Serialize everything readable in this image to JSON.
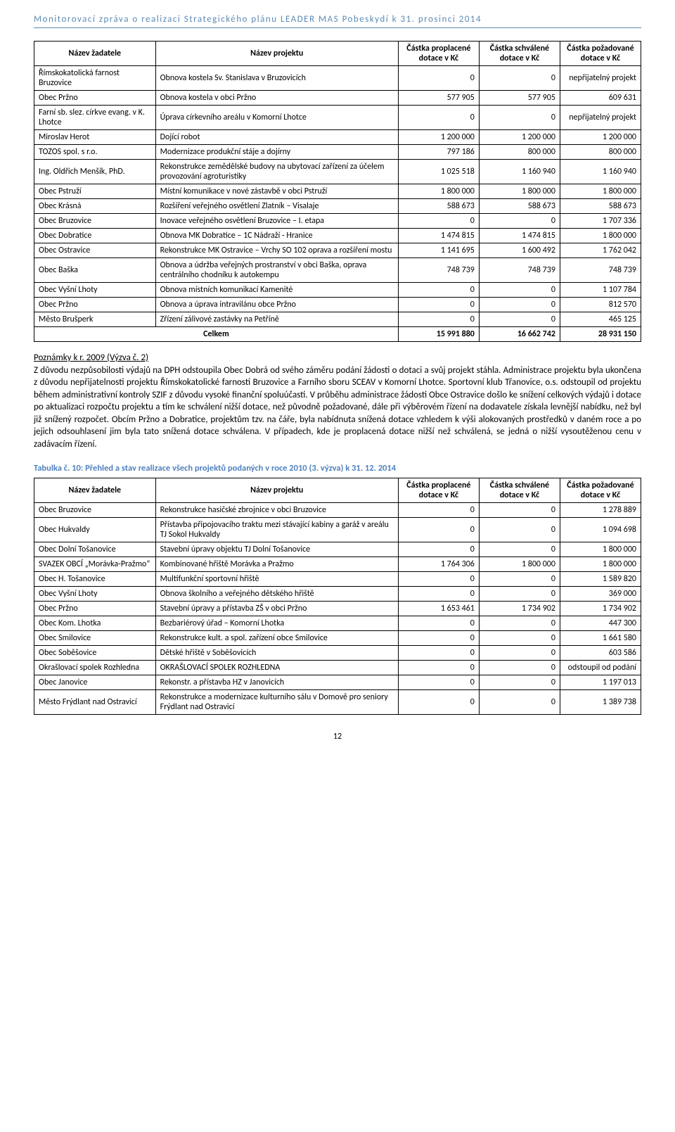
{
  "doc_header": "Monitorovací zpráva o realizaci Strategického plánu LEADER MAS Pobeskydí k 31. prosinci 2014",
  "page_number": "12",
  "colors": {
    "header_text": "#5b8ab5",
    "header_rule": "#5b8ab5",
    "caption": "#4f81bd",
    "body_text": "#000000",
    "table_border": "#000000",
    "background": "#ffffff"
  },
  "table1": {
    "columns": [
      "Název žadatele",
      "Název projektu",
      "Částka proplacené dotace v Kč",
      "Částka schválené dotace v Kč",
      "Částka požadované dotace v Kč"
    ],
    "rows": [
      [
        "Římskokatolická farnost Bruzovice",
        "Obnova kostela Sv. Stanislava v Bruzovicích",
        "0",
        "0",
        "nepřijatelný projekt"
      ],
      [
        "Obec Pržno",
        "Obnova kostela v obci Pržno",
        "577 905",
        "577 905",
        "609 631"
      ],
      [
        "Farní sb. slez. církve evang. v K. Lhotce",
        "Úprava církevního areálu v Komorní Lhotce",
        "0",
        "0",
        "nepřijatelný projekt"
      ],
      [
        "Miroslav Herot",
        "Dojící robot",
        "1 200 000",
        "1 200 000",
        "1 200 000"
      ],
      [
        "TOZOS spol. s r.o.",
        "Modernizace produkční stáje a dojírny",
        "797 186",
        "800 000",
        "800 000"
      ],
      [
        "Ing. Oldřich Menšík, PhD.",
        "Rekonstrukce zemědělské budovy na ubytovací zařízení za účelem provozování agroturistiky",
        "1 025 518",
        "1 160 940",
        "1 160 940"
      ],
      [
        "Obec Pstruží",
        "Místní komunikace v nové zástavbě v obci Pstruží",
        "1 800 000",
        "1 800 000",
        "1 800 000"
      ],
      [
        "Obec Krásná",
        "Rozšíření veřejného osvětlení Zlatník – Visalaje",
        "588 673",
        "588 673",
        "588 673"
      ],
      [
        "Obec Bruzovice",
        "Inovace veřejného osvětlení Bruzovice  – I. etapa",
        "0",
        "0",
        "1 707 336"
      ],
      [
        "Obec Dobratice",
        "Obnova MK Dobratice – 1C Nádraží - Hranice",
        "1 474 815",
        "1 474 815",
        "1 800 000"
      ],
      [
        "Obec Ostravice",
        "Rekonstrukce MK Ostravice – Vrchy SO 102 oprava a rozšíření mostu",
        "1 141 695",
        "1 600 492",
        "1 762 042"
      ],
      [
        "Obec Baška",
        "Obnova a údržba veřejných prostranství v obci Baška, oprava centrálního chodníku k autokempu",
        "748 739",
        "748 739",
        "748 739"
      ],
      [
        "Obec Vyšní Lhoty",
        "Obnova místních komunikací Kamenité",
        "0",
        "0",
        "1 107 784"
      ],
      [
        "Obec Pržno",
        "Obnova a úprava intravilánu obce Pržno",
        "0",
        "0",
        "812 570"
      ],
      [
        "Město Brušperk",
        "Zřízení zálivové zastávky na Petříně",
        "0",
        "0",
        "465 125"
      ]
    ],
    "total": [
      "Celkem",
      "15 991 880",
      "16 662 742",
      "28 931 150"
    ]
  },
  "notes": {
    "lead": "Poznámky k r. 2009 (Výzva č. 2)",
    "body": "Z důvodu nezpůsobilosti výdajů na DPH odstoupila Obec Dobrá od svého záměru podání žádosti o dotaci a svůj projekt stáhla. Administrace projektu byla ukončena z důvodu nepřijatelnosti projektu Římskokatolické farnosti Bruzovice a Farního sboru SCEAV v Komorní Lhotce. Sportovní klub Třanovice, o.s. odstoupil od projektu během administrativní kontroly SZIF z důvodu vysoké finanční spoluúčasti. V průběhu administrace žádosti Obce Ostravice došlo ke snížení celkových výdajů i dotace po aktualizaci rozpočtu projektu a tím ke schválení nižší dotace, než původně požadované, dále při výběrovém řízení na dodavatele získala levnější nabídku, než byl již snížený rozpočet. Obcím Pržno a Dobratice, projektům tzv. na čáře, byla nabídnuta snížená dotace vzhledem k výši alokovaných prostředků v daném roce a po jejich odsouhlasení jim byla tato snížená dotace schválena. V případech, kde je proplacená dotace nižší než schválená, se jedná o nižší vysoutěženou cenu v zadávacím řízení."
  },
  "table2_caption": "Tabulka č. 10: Přehled a stav realizace všech projektů podaných v roce 2010 (3. výzva) k 31. 12. 2014",
  "table2": {
    "columns": [
      "Název žadatele",
      "Název projektu",
      "Částka proplacené dotace v Kč",
      "Částka schválené dotace v Kč",
      "Částka požadované dotace v Kč"
    ],
    "rows": [
      [
        "Obec Bruzovice",
        "Rekonstrukce hasičské zbrojnice v obci Bruzovice",
        "0",
        "0",
        "1 278 889"
      ],
      [
        "Obec Hukvaldy",
        "Přístavba připojovacího traktu mezi stávající kabiny a garáž v areálu TJ Sokol Hukvaldy",
        "0",
        "0",
        "1 094 698"
      ],
      [
        "Obec Dolní Tošanovice",
        "Stavební úpravy objektu TJ Dolní Tošanovice",
        "0",
        "0",
        "1 800 000"
      ],
      [
        "SVAZEK OBCÍ „Morávka-Pražmo“",
        "Kombinované hřiště Morávka a Pražmo",
        "1 764 306",
        "1 800 000",
        "1 800 000"
      ],
      [
        "Obec H. Tošanovice",
        "Multifunkční sportovní hřiště",
        "0",
        "0",
        "1 589 820"
      ],
      [
        "Obec Vyšní Lhoty",
        "Obnova školního a veřejného dětského hřiště",
        "0",
        "0",
        "369 000"
      ],
      [
        "Obec Pržno",
        "Stavební úpravy a přístavba ZŠ v obci Pržno",
        "1 653 461",
        "1 734 902",
        "1 734 902"
      ],
      [
        "Obec Kom. Lhotka",
        "Bezbariérový úřad – Komorní Lhotka",
        "0",
        "0",
        "447 300"
      ],
      [
        "Obec Smilovice",
        "Rekonstrukce kult. a spol. zařízení obce Smilovice",
        "0",
        "0",
        "1 661 580"
      ],
      [
        "Obec Soběšovice",
        "Dětské hřiště v Soběšovicích",
        "0",
        "0",
        "603 586"
      ],
      [
        "Okrašlovací spolek Rozhledna",
        "OKRAŠLOVACÍ SPOLEK ROZHLEDNA",
        "0",
        "0",
        "odstoupil od podání"
      ],
      [
        "Obec Janovice",
        "Rekonstr. a přístavba HZ v Janovicích",
        "0",
        "0",
        "1 197 013"
      ],
      [
        "Město Frýdlant nad Ostravicí",
        "Rekonstrukce a modernizace kulturního sálu v Domově pro seniory Frýdlant nad Ostravicí",
        "0",
        "0",
        "1 389 738"
      ]
    ]
  }
}
